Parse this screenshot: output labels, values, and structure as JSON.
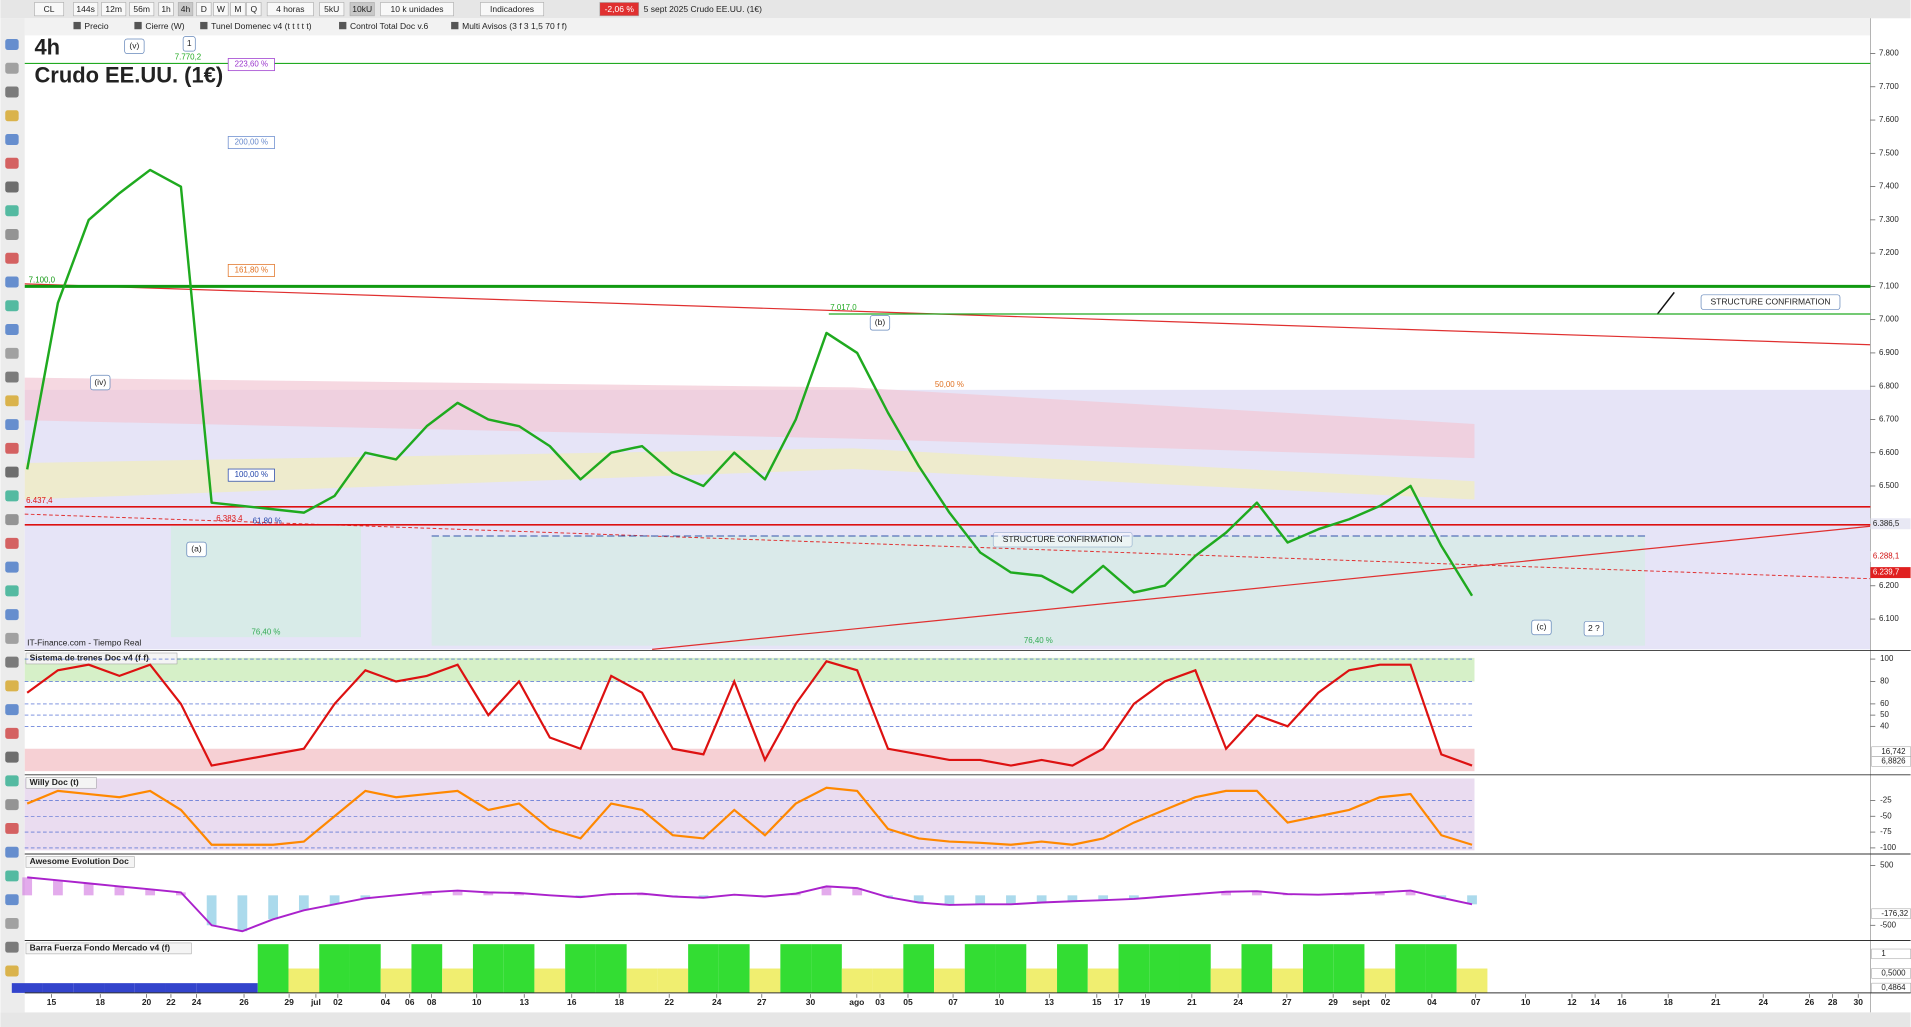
{
  "toolbar": {
    "symbol": "CL",
    "timeframes": [
      "144s",
      "12m",
      "56m",
      "1h",
      "4h",
      "D",
      "W",
      "M",
      "Q"
    ],
    "interval": "4 horas",
    "units_buttons": [
      "5kU",
      "10kU"
    ],
    "units": "10 k unidades",
    "indicators": "Indicadores",
    "change": "-2,06 %",
    "instrument": "5 sept 2025 Crudo EE.UU. (1€)"
  },
  "legend": [
    "Precio",
    "Cierre (W)",
    "Tunel Domenec v4 (t t t t t)",
    "Control Total Doc v.6",
    "Multi Avisos (3 f 3 1,5 70 f f)"
  ],
  "chart_data": {
    "type": "line",
    "timeframe": "4h",
    "title": "Crudo EE.UU. (1€)",
    "source": "IT-Finance.com - Tiempo Real",
    "color": "#1faa1f",
    "values": [
      6550,
      7050,
      7300,
      7380,
      7450,
      7400,
      6450,
      6440,
      6430,
      6420,
      6470,
      6600,
      6580,
      6680,
      6750,
      6700,
      6680,
      6620,
      6520,
      6600,
      6620,
      6540,
      6500,
      6600,
      6520,
      6700,
      6960,
      6900,
      6720,
      6560,
      6420,
      6300,
      6240,
      6230,
      6180,
      6260,
      6180,
      6200,
      6290,
      6360,
      6450,
      6330,
      6370,
      6400,
      6440,
      6500,
      6320,
      6170
    ],
    "ylim": [
      6009,
      7851
    ],
    "yticks": [
      {
        "value": 7800,
        "label": "7.800"
      },
      {
        "value": 7700,
        "label": "7.700"
      },
      {
        "value": 7600,
        "label": "7.600"
      },
      {
        "value": 7500,
        "label": "7.500"
      },
      {
        "value": 7400,
        "label": "7.400"
      },
      {
        "value": 7300,
        "label": "7.300"
      },
      {
        "value": 7200,
        "label": "7.200"
      },
      {
        "value": 7100,
        "label": "7.100"
      },
      {
        "value": 7000,
        "label": "7.000"
      },
      {
        "value": 6900,
        "label": "6.900"
      },
      {
        "value": 6800,
        "label": "6.800"
      },
      {
        "value": 6700,
        "label": "6.700"
      },
      {
        "value": 6600,
        "label": "6.600"
      },
      {
        "value": 6500,
        "label": "6.500"
      },
      {
        "value": 6200,
        "label": "6.200"
      },
      {
        "value": 6100,
        "label": "6.100"
      }
    ],
    "levels": [
      {
        "value": 7770.2,
        "label": "7.770,2",
        "color": "#22aa22"
      },
      {
        "value": 7100,
        "label": "7.100,0",
        "color": "#119911"
      },
      {
        "value": 7017,
        "label": "7.017,0",
        "color": "#22aa22"
      },
      {
        "value": 6437.4,
        "label": "6.437,4",
        "color": "#dd1111"
      },
      {
        "value": 6383.4,
        "label": "6.383,4",
        "color": "#dd1111"
      }
    ],
    "price_labels": [
      {
        "value": 6386.5,
        "label": "6.386,5"
      },
      {
        "value": 6288.1,
        "label": "6.288,1"
      },
      {
        "value": 6239.7,
        "label": "6.239,7"
      }
    ],
    "annotations": [
      "(v)",
      "1",
      "(iv)",
      "(a)",
      "(b)",
      "(c)",
      "2 ?",
      "STRUCTURE CONFIRMATION",
      "STRUCTURE CONFIRMATION"
    ],
    "fib_labels": [
      "223,60 %",
      "200,00 %",
      "161,80 %",
      "100,00 %",
      "61,80 %",
      "76,40 %",
      "50,00 %",
      "76,40 %"
    ],
    "x_labels": [
      "15",
      "18",
      "20",
      "22",
      "24",
      "26",
      "29",
      "jul",
      "02",
      "04",
      "06",
      "08",
      "10",
      "13",
      "16",
      "18",
      "22",
      "24",
      "27",
      "30",
      "ago",
      "03",
      "05",
      "07",
      "10",
      "13",
      "15",
      "17",
      "19",
      "21",
      "24",
      "27",
      "29",
      "sept",
      "02",
      "04",
      "07",
      "10",
      "12",
      "14",
      "16",
      "18",
      "21",
      "24",
      "26",
      "28",
      "30"
    ]
  },
  "panels": [
    {
      "title": "Sistema de trenes Doc v4 (f f)",
      "color": "#dd1111",
      "ylim": [
        0,
        106.5
      ],
      "yticks": [
        100,
        80,
        60,
        50,
        40
      ],
      "readouts": [
        "16,742",
        "6,8826"
      ],
      "values": [
        70,
        90,
        95,
        85,
        95,
        60,
        5,
        10,
        15,
        20,
        60,
        90,
        80,
        85,
        95,
        50,
        80,
        30,
        20,
        85,
        70,
        20,
        15,
        80,
        10,
        60,
        98,
        90,
        20,
        15,
        10,
        10,
        5,
        10,
        5,
        20,
        60,
        80,
        90,
        20,
        50,
        40,
        70,
        90,
        95,
        95,
        15,
        5
      ]
    },
    {
      "title": "Willy Doc (t)",
      "color": "#ff8800",
      "ylim": [
        -107.7,
        13.5
      ],
      "yticks": [
        -25,
        -50,
        -75,
        -100
      ],
      "values": [
        -30,
        -10,
        -15,
        -20,
        -10,
        -40,
        -95,
        -95,
        -95,
        -90,
        -50,
        -10,
        -20,
        -15,
        -10,
        -40,
        -30,
        -70,
        -85,
        -30,
        -40,
        -80,
        -85,
        -40,
        -80,
        -30,
        -5,
        -10,
        -70,
        -85,
        -90,
        -92,
        -95,
        -90,
        -95,
        -85,
        -60,
        -40,
        -20,
        -10,
        -10,
        -60,
        -50,
        -40,
        -20,
        -15,
        -80,
        -95
      ]
    },
    {
      "title": "Awesome Evolution Doc",
      "color": "#aa22cc",
      "ylim": [
        -734,
        670
      ],
      "yticks": [
        500,
        -500
      ],
      "readouts": [
        "-176,32"
      ],
      "values": [
        300,
        250,
        200,
        150,
        100,
        50,
        -500,
        -600,
        -400,
        -250,
        -150,
        -50,
        0,
        50,
        80,
        50,
        40,
        0,
        -30,
        20,
        30,
        -20,
        -40,
        10,
        -20,
        30,
        150,
        120,
        -30,
        -120,
        -160,
        -150,
        -150,
        -120,
        -100,
        -80,
        -60,
        -20,
        20,
        60,
        70,
        20,
        10,
        30,
        50,
        80,
        -40,
        -150
      ]
    },
    {
      "title": "Barra Fuerza Fondo Mercado v4 (f)",
      "color": "#33dd33",
      "ylim": [
        0,
        1
      ],
      "readouts": [
        "1",
        "0,5000",
        "0,4864"
      ],
      "values": [
        0.2,
        0.2,
        0.2,
        0.2,
        0.2,
        0.2,
        0.2,
        0.2,
        1,
        0.5,
        1,
        1,
        0.5,
        1,
        0.5,
        1,
        1,
        0.5,
        1,
        1,
        0.5,
        0.5,
        1,
        1,
        0.5,
        1,
        1,
        0.5,
        0.5,
        1,
        0.5,
        1,
        1,
        0.5,
        1,
        0.5,
        1,
        1,
        1,
        0.5,
        1,
        0.5,
        1,
        1,
        0.5,
        1,
        1,
        0.5
      ]
    }
  ]
}
